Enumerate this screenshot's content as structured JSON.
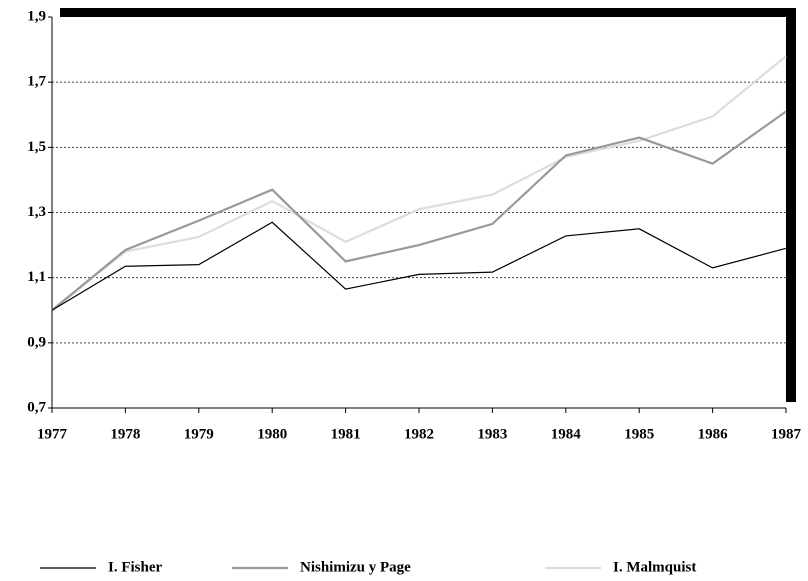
{
  "chart_data": {
    "type": "line",
    "x": [
      1977,
      1978,
      1979,
      1980,
      1981,
      1982,
      1983,
      1984,
      1985,
      1986,
      1987
    ],
    "series": [
      {
        "name": "I. Fisher",
        "color": "#000000",
        "values": [
          1.0,
          1.135,
          1.14,
          1.27,
          1.065,
          1.11,
          1.117,
          1.228,
          1.25,
          1.13,
          1.19
        ]
      },
      {
        "name": "Nishimizu y Page",
        "color": "#999999",
        "values": [
          1.0,
          1.185,
          1.275,
          1.37,
          1.15,
          1.2,
          1.265,
          1.475,
          1.53,
          1.45,
          1.61
        ]
      },
      {
        "name": "I. Malmquist",
        "color": "#dddddd",
        "values": [
          1.0,
          1.18,
          1.225,
          1.335,
          1.21,
          1.31,
          1.355,
          1.47,
          1.52,
          1.595,
          1.78
        ]
      }
    ],
    "xlim": [
      1977,
      1987
    ],
    "xticks": [
      1977,
      1978,
      1979,
      1980,
      1981,
      1982,
      1983,
      1984,
      1985,
      1986,
      1987
    ],
    "ylim": [
      0.7,
      1.9
    ],
    "yticks": [
      {
        "value": 0.7,
        "label": "0,7"
      },
      {
        "value": 0.9,
        "label": "0,9"
      },
      {
        "value": 1.1,
        "label": "1,1"
      },
      {
        "value": 1.3,
        "label": "1,3"
      },
      {
        "value": 1.5,
        "label": "1,5"
      },
      {
        "value": 1.7,
        "label": "1,7"
      },
      {
        "value": 1.9,
        "label": "1,9"
      }
    ],
    "grid": true,
    "legend": "bottom"
  }
}
